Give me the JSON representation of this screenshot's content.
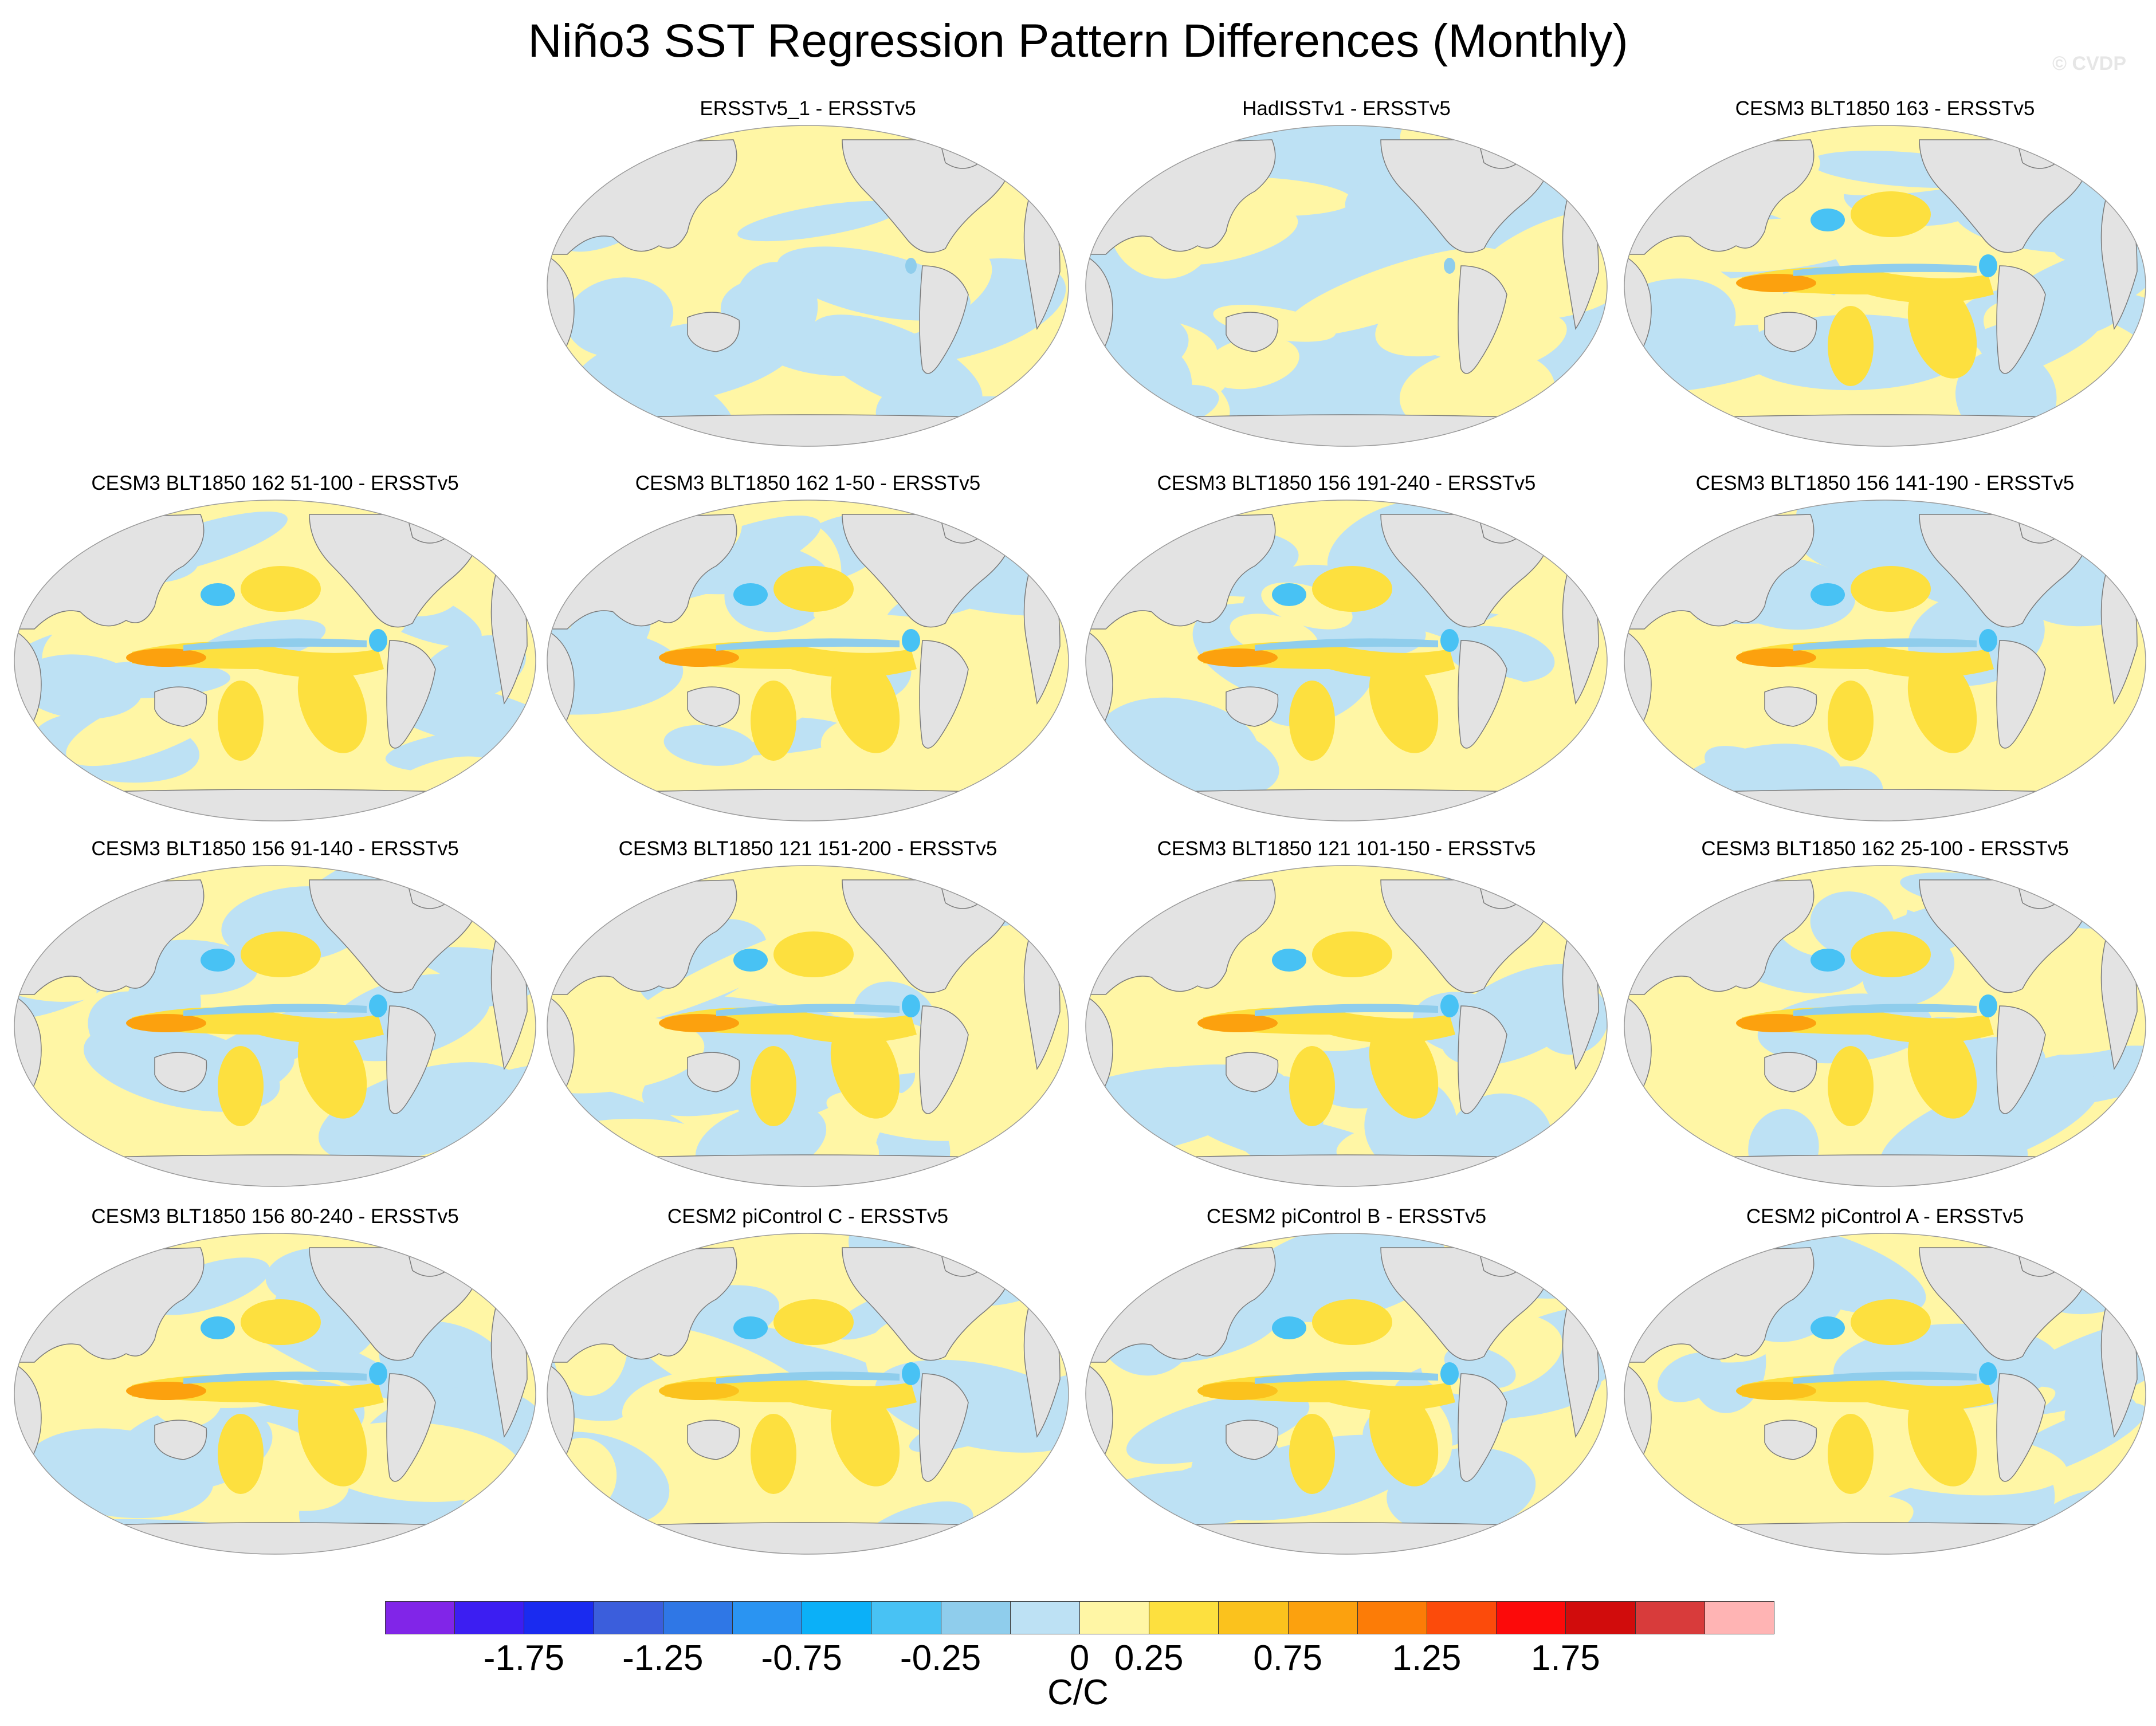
{
  "title": "Niño3 SST Regression Pattern Differences (Monthly)",
  "watermark": "© CVDP",
  "panels": [
    {
      "title": "ERSSTv5_1 - ERSSTv5",
      "pattern": "weak-warm"
    },
    {
      "title": "HadISSTv1 - ERSSTv5",
      "pattern": "weak-cool"
    },
    {
      "title": "CESM3 BLT1850 163 - ERSSTv5",
      "pattern": "strong"
    },
    {
      "title": "CESM3 BLT1850 162 51-100 - ERSSTv5",
      "pattern": "strong"
    },
    {
      "title": "CESM3 BLT1850 162 1-50 - ERSSTv5",
      "pattern": "strong"
    },
    {
      "title": "CESM3 BLT1850 156 191-240 - ERSSTv5",
      "pattern": "strong"
    },
    {
      "title": "CESM3 BLT1850 156 141-190 - ERSSTv5",
      "pattern": "strong"
    },
    {
      "title": "CESM3 BLT1850 156 91-140 - ERSSTv5",
      "pattern": "strong"
    },
    {
      "title": "CESM3 BLT1850 121 151-200 - ERSSTv5",
      "pattern": "strong"
    },
    {
      "title": "CESM3 BLT1850 121 101-150 - ERSSTv5",
      "pattern": "strong"
    },
    {
      "title": "CESM3 BLT1850 162 25-100 - ERSSTv5",
      "pattern": "strong"
    },
    {
      "title": "CESM3 BLT1850 156 80-240 - ERSSTv5",
      "pattern": "strong"
    },
    {
      "title": "CESM2 piControl C - ERSSTv5",
      "pattern": "moderate"
    },
    {
      "title": "CESM2 piControl B - ERSSTv5",
      "pattern": "moderate"
    },
    {
      "title": "CESM2 piControl A - ERSSTv5",
      "pattern": "moderate"
    }
  ],
  "colorbar": {
    "colors": [
      "#8125e8",
      "#3c1ef2",
      "#1a2bf0",
      "#3b5edc",
      "#2f77e6",
      "#2a94f2",
      "#0bb0f8",
      "#48c2f4",
      "#8fcdec",
      "#bde1f4",
      "#fff6a5",
      "#fde03f",
      "#fbc21d",
      "#fca10e",
      "#fc7c07",
      "#fc4b0b",
      "#fc0a0a",
      "#d10c0c",
      "#d83b3b",
      "#ffb4b4"
    ],
    "tick_labels": [
      "-1.75",
      "-1.25",
      "-0.75",
      "-0.25",
      "0",
      "0.25",
      "0.75",
      "1.25",
      "1.75"
    ],
    "units": "C/C"
  },
  "map_colors": {
    "land": "#e3e3e3",
    "coast": "#7a7a7a",
    "zero_band_cool": "#bde1f4",
    "zero_band_warm": "#fff6a5",
    "cool_1": "#8fcdec",
    "cool_2": "#48c2f4",
    "warm_1": "#fde03f",
    "warm_2": "#fbc21d",
    "warm_3": "#fca10e"
  }
}
